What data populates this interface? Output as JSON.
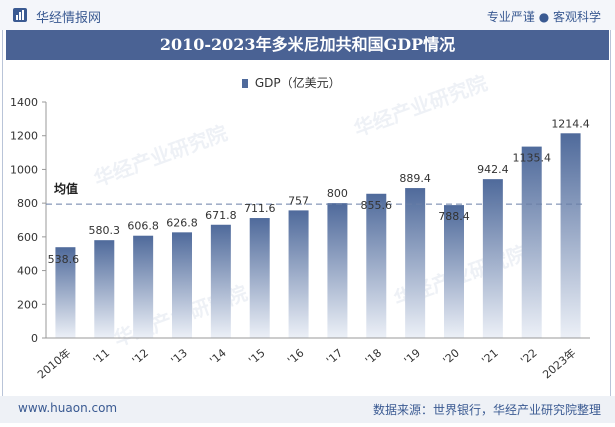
{
  "header": {
    "brand": "华经情报网",
    "tagline": "专业严谨 ● 客观科学"
  },
  "chart_data": {
    "type": "bar",
    "title": "2010-2023年多米尼加共和国GDP情况",
    "categories": [
      "2010年",
      "'11",
      "'12",
      "'13",
      "'14",
      "'15",
      "'16",
      "'17",
      "'18",
      "'19",
      "'20",
      "'21",
      "'22",
      "2023年"
    ],
    "series": [
      {
        "name": "GDP（亿美元）",
        "values": [
          538.6,
          580.3,
          606.8,
          626.8,
          671.8,
          711.6,
          757,
          800,
          855.6,
          889.4,
          788.4,
          942.4,
          1135.4,
          1214.4
        ],
        "labels": [
          "538.6",
          "580.3",
          "606.8",
          "626.8",
          "671.8",
          "711.6",
          "757",
          "800",
          "855.6",
          "889.4",
          "788.4",
          "942.4",
          "1135.4",
          "1214.4"
        ]
      }
    ],
    "ylim": [
      0,
      1400
    ],
    "yticks": [
      0,
      200,
      400,
      600,
      800,
      1000,
      1200,
      1400
    ],
    "mean_line": {
      "label": "均值",
      "value": 794.3
    },
    "grid": false,
    "legend": "top-center",
    "colors": {
      "bar_top": "#4f6a9b",
      "bar_bottom": "#ecf0f7",
      "mean_line": "#6a7fa6"
    }
  },
  "footer": {
    "left": "www.huaon.com",
    "right": "数据来源：世界银行，华经产业研究院整理"
  },
  "watermarks": [
    "华经产业研究院",
    "www.huaon.com"
  ]
}
